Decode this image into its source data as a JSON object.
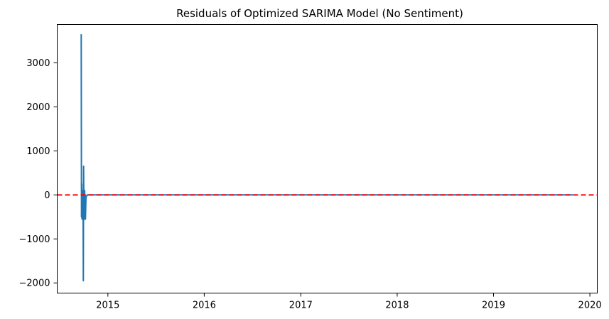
{
  "chart_data": {
    "type": "line",
    "title": "Residuals of Optimized SARIMA Model (No Sentiment)",
    "xlabel": "",
    "ylabel": "",
    "x_ticks": [
      "2015",
      "2016",
      "2017",
      "2018",
      "2019",
      "2020"
    ],
    "y_ticks": [
      "3000",
      "2000",
      "1000",
      "0",
      "−1000",
      "−2000"
    ],
    "x_range": [
      "2014-06-23",
      "2020-01-29"
    ],
    "y_range": [
      -2230,
      3870
    ],
    "grid": false,
    "legend": "none",
    "series": [
      {
        "color": "#1f77b4",
        "x": [
          "2014-09-22",
          "2014-09-23",
          "2014-09-24",
          "2014-09-25",
          "2014-09-26",
          "2014-09-27",
          "2014-09-28",
          "2014-09-29",
          "2014-09-30",
          "2014-10-01",
          "2014-10-02",
          "2014-10-03",
          "2014-10-04",
          "2014-10-05",
          "2014-10-06",
          "2014-10-07",
          "2014-10-08",
          "2014-10-10",
          "2014-10-15",
          "2015-06-01",
          "2016-06-01",
          "2017-06-01",
          "2018-06-01",
          "2019-06-01",
          "2019-10-29"
        ],
        "y": [
          3650,
          -500,
          250,
          -550,
          -300,
          100,
          -550,
          0,
          -1950,
          650,
          -300,
          0,
          -550,
          100,
          -500,
          0,
          -550,
          -50,
          0,
          0,
          0,
          0,
          0,
          0,
          0
        ]
      }
    ],
    "reference_lines": [
      {
        "type": "horizontal",
        "y": 0,
        "color": "#ff0000",
        "style": "dashed"
      }
    ]
  }
}
